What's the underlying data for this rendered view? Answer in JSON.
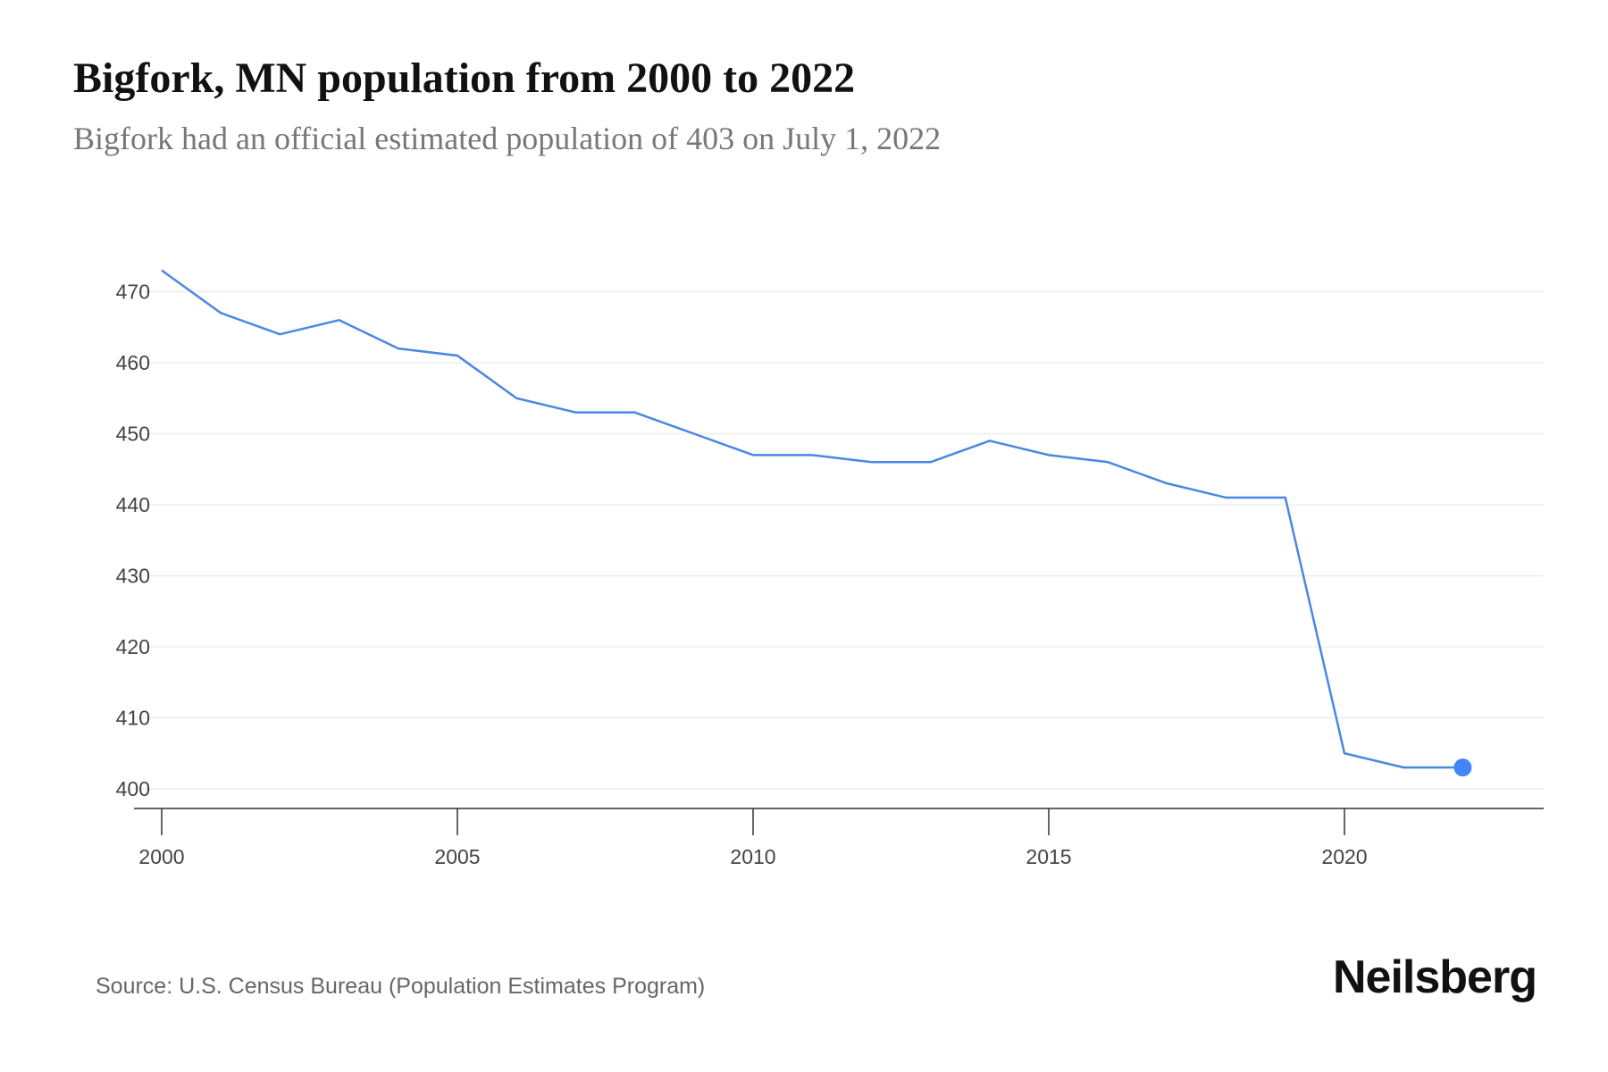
{
  "title": "Bigfork, MN population from 2000 to 2022",
  "subtitle": "Bigfork had an official estimated population of 403 on July 1, 2022",
  "source": "Source: U.S. Census Bureau (Population Estimates Program)",
  "logo_text": "Neilsberg",
  "chart_data": {
    "type": "line",
    "title": "Bigfork, MN population from 2000 to 2022",
    "x": [
      2000,
      2001,
      2002,
      2003,
      2004,
      2005,
      2006,
      2007,
      2008,
      2009,
      2010,
      2011,
      2012,
      2013,
      2014,
      2015,
      2016,
      2017,
      2018,
      2019,
      2020,
      2021,
      2022
    ],
    "series": [
      {
        "values": [
          473,
          467,
          464,
          466,
          462,
          461,
          455,
          453,
          453,
          450,
          447,
          447,
          446,
          446,
          449,
          447,
          446,
          443,
          441,
          441,
          405,
          403,
          403
        ]
      }
    ],
    "xticks": [
      "2000",
      "2005",
      "2010",
      "2015",
      "2020"
    ],
    "yticks": [
      "400",
      "410",
      "420",
      "430",
      "440",
      "450",
      "460",
      "470"
    ],
    "xlim": [
      2000,
      2023.4
    ],
    "ylim": [
      397.3,
      475
    ],
    "grid": true,
    "line_color": "#4a88e0",
    "last_point_marker": true
  }
}
